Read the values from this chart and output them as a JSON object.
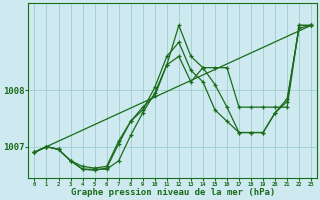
{
  "background_color": "#ceeaf0",
  "line_color": "#1a6b1a",
  "grid_color": "#9ecece",
  "xlabel": "Graphe pression niveau de la mer (hPa)",
  "xlabel_color": "#1a6b1a",
  "ylabel_ticks": [
    1007,
    1008
  ],
  "xlim": [
    -0.5,
    23.5
  ],
  "ylim": [
    1006.45,
    1009.55
  ],
  "xticks": [
    0,
    1,
    2,
    3,
    4,
    5,
    6,
    7,
    8,
    9,
    10,
    11,
    12,
    13,
    14,
    15,
    16,
    17,
    18,
    19,
    20,
    21,
    22,
    23
  ],
  "series": [
    [
      1006.9,
      1007.0,
      1006.95,
      1006.75,
      1006.6,
      1006.6,
      1006.6,
      1006.75,
      1007.2,
      1007.6,
      1007.95,
      1008.45,
      1009.15,
      1008.6,
      1008.4,
      1008.1,
      1007.7,
      1007.25,
      1007.25,
      1007.25,
      1007.6,
      1007.8,
      1009.15,
      1009.15
    ],
    [
      1006.9,
      1007.0,
      1006.95,
      1006.75,
      1006.6,
      1006.58,
      1006.62,
      1007.05,
      1007.45,
      1007.65,
      1008.05,
      1008.6,
      1008.85,
      1008.35,
      1008.15,
      1007.65,
      1007.45,
      1007.25,
      1007.25,
      1007.25,
      1007.6,
      1007.85,
      1009.1,
      1009.15
    ],
    [
      1006.9,
      1007.0,
      1006.95,
      1006.75,
      1006.65,
      1006.62,
      1006.65,
      1007.1,
      1007.45,
      1007.7,
      1007.9,
      1008.45,
      1008.6,
      1008.15,
      1008.4,
      1008.4,
      1008.4,
      1007.7,
      1007.7,
      1007.7,
      1007.7,
      1007.7,
      1009.15,
      1009.15
    ],
    [
      1006.9,
      1007.0,
      null,
      null,
      null,
      null,
      null,
      null,
      null,
      null,
      null,
      null,
      null,
      null,
      null,
      null,
      null,
      null,
      null,
      null,
      null,
      null,
      null,
      1009.15
    ]
  ]
}
